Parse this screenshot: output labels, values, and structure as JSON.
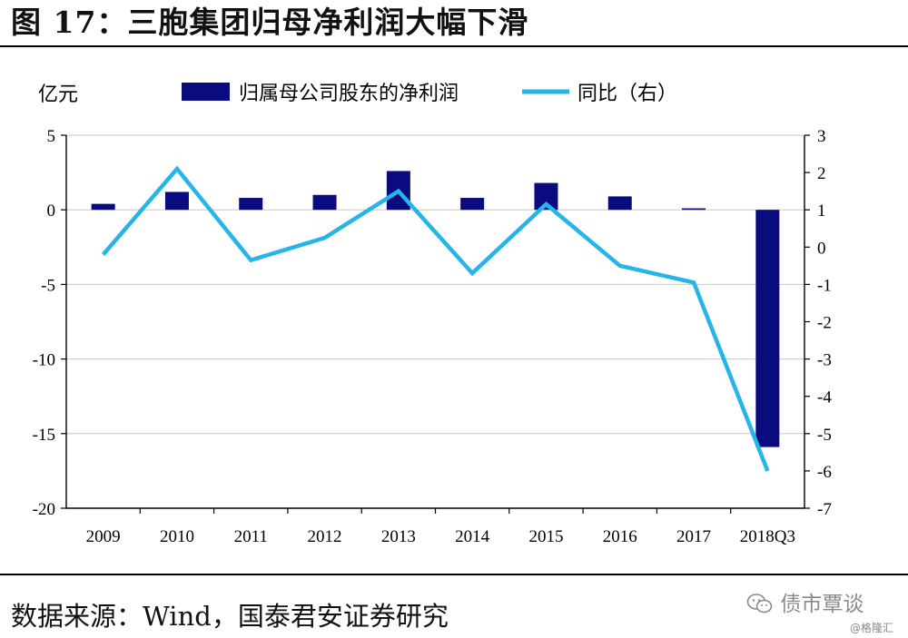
{
  "figure": {
    "title": "图 17：三胞集团归母净利润大幅下滑",
    "source": "数据来源：Wind，国泰君安证券研究",
    "watermark_main": "债市覃谈",
    "watermark_sub": "@格隆汇",
    "watermark_icon": "wechat-icon"
  },
  "chart_data": {
    "type": "bar+line",
    "categories": [
      "2009",
      "2010",
      "2011",
      "2012",
      "2013",
      "2014",
      "2015",
      "2016",
      "2017",
      "2018Q3"
    ],
    "y_left_label": "亿元",
    "y_left_range": [
      -20,
      5
    ],
    "y_left_ticks": [
      5,
      0,
      -5,
      -10,
      -15,
      -20
    ],
    "y_right_range": [
      -7,
      3
    ],
    "y_right_ticks": [
      3,
      2,
      1,
      0,
      -1,
      -2,
      -3,
      -4,
      -5,
      -6,
      -7
    ],
    "legend_position": "top",
    "series": [
      {
        "name": "归属母公司股东的净利润",
        "type": "bar",
        "axis": "left",
        "color": "#0b0b80",
        "values": [
          0.4,
          1.2,
          0.8,
          1.0,
          2.6,
          0.8,
          1.8,
          0.9,
          0.1,
          -15.9
        ]
      },
      {
        "name": "同比（右）",
        "type": "line",
        "axis": "right",
        "color": "#25b5e8",
        "values": [
          -0.2,
          2.1,
          -0.35,
          0.25,
          1.5,
          -0.7,
          1.15,
          -0.5,
          -0.95,
          -6.0
        ]
      }
    ]
  }
}
